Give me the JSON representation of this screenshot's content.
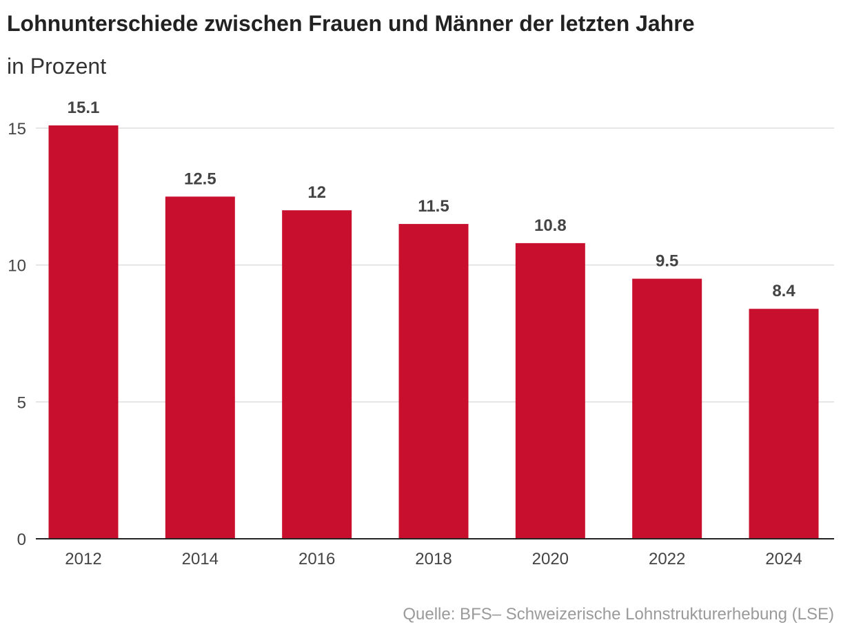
{
  "title": "Lohnunterschiede zwischen Frauen und Männer der letzten Jahre",
  "subtitle": "in Prozent",
  "source": "Quelle: BFS– Schweizerische Lohnstrukturerhebung (LSE)",
  "colors": {
    "bar": "#c8102e",
    "grid": "#dddddd",
    "axis": "#222222",
    "value_label": "#444444",
    "tick_label": "#444444"
  },
  "chart_data": {
    "type": "bar",
    "categories": [
      "2012",
      "2014",
      "2016",
      "2018",
      "2020",
      "2022",
      "2024"
    ],
    "values": [
      15.1,
      12.5,
      12,
      11.5,
      10.8,
      9.5,
      8.4
    ],
    "value_labels": [
      "15.1",
      "12.5",
      "12",
      "11.5",
      "10.8",
      "9.5",
      "8.4"
    ],
    "title": "Lohnunterschiede zwischen Frauen und Männer der letzten Jahre",
    "subtitle": "in Prozent",
    "xlabel": "",
    "ylabel": "",
    "ylim": [
      0,
      15
    ],
    "yticks": [
      0,
      5,
      10,
      15
    ],
    "grid": true,
    "legend": "none"
  }
}
